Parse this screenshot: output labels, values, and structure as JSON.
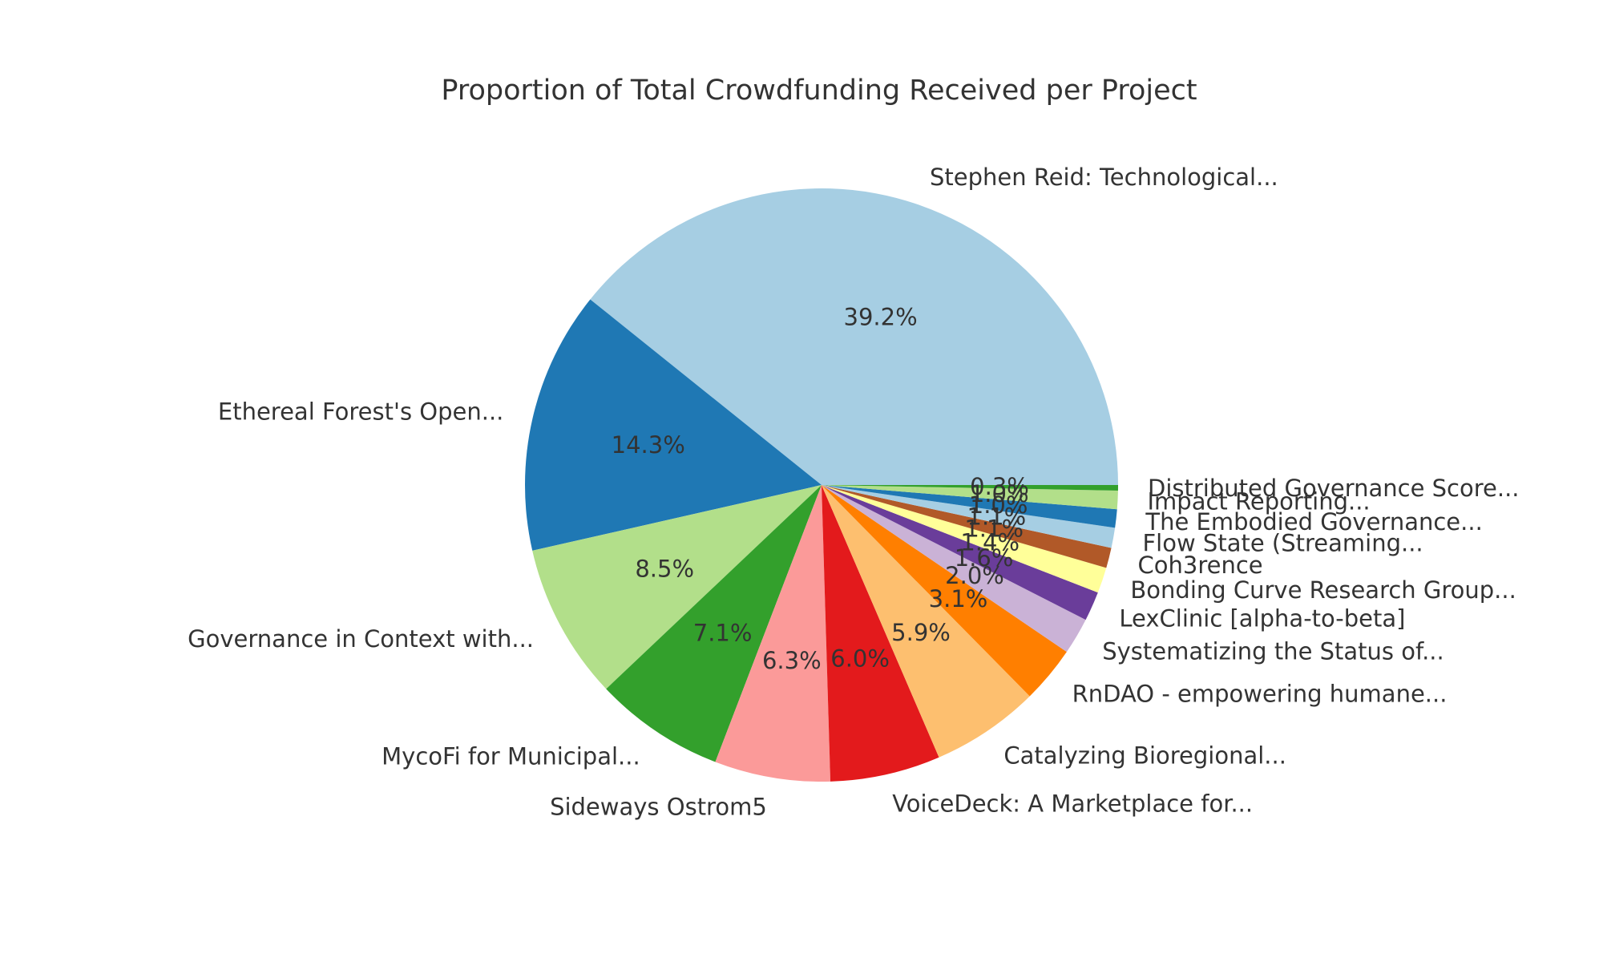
{
  "chart_data": {
    "type": "pie",
    "title": "Proportion of Total Crowdfunding Received per Project",
    "start_angle_deg": 0,
    "direction": "counterclockwise",
    "legend": "none",
    "background_color": "#ffffff",
    "text_color": "#333333",
    "slices": [
      {
        "label": "Stephen Reid: Technological...",
        "pct_label": "39.2%",
        "value_pct": 39.2,
        "color": "#a6cee3"
      },
      {
        "label": "Ethereal Forest's Open...",
        "pct_label": "14.3%",
        "value_pct": 14.3,
        "color": "#1f78b4"
      },
      {
        "label": "Governance in Context with...",
        "pct_label": "8.5%",
        "value_pct": 8.5,
        "color": "#b2df8a"
      },
      {
        "label": "MycoFi for Municipal...",
        "pct_label": "7.1%",
        "value_pct": 7.1,
        "color": "#33a02c"
      },
      {
        "label": "Sideways Ostrom5",
        "pct_label": "6.3%",
        "value_pct": 6.3,
        "color": "#fb9a99"
      },
      {
        "label": "VoiceDeck: A Marketplace for...",
        "pct_label": "6.0%",
        "value_pct": 6.0,
        "color": "#e31a1c"
      },
      {
        "label": "Catalyzing Bioregional...",
        "pct_label": "5.9%",
        "value_pct": 5.9,
        "color": "#fdbf6f"
      },
      {
        "label": "RnDAO - empowering humane...",
        "pct_label": "3.1%",
        "value_pct": 3.1,
        "color": "#ff7f00"
      },
      {
        "label": "Systematizing the Status of...",
        "pct_label": "2.0%",
        "value_pct": 2.0,
        "color": "#cab2d6"
      },
      {
        "label": "LexClinic [alpha-to-beta]",
        "pct_label": "1.6%",
        "value_pct": 1.6,
        "color": "#6a3d9a"
      },
      {
        "label": "Bonding Curve Research Group...",
        "pct_label": "1.4%",
        "value_pct": 1.4,
        "color": "#ffff99"
      },
      {
        "label": "Coh3rence",
        "pct_label": "1.1%",
        "value_pct": 1.1,
        "color": "#b15928"
      },
      {
        "label": "Flow State (Streaming...",
        "pct_label": "1.1%",
        "value_pct": 1.1,
        "color": "#a6cee3"
      },
      {
        "label": "The Embodied Governance...",
        "pct_label": "1.0%",
        "value_pct": 1.0,
        "color": "#1f78b4"
      },
      {
        "label": "Impact Reporting...",
        "pct_label": "1.0%",
        "value_pct": 1.0,
        "color": "#b2df8a"
      },
      {
        "label": "Distributed Governance Score...",
        "pct_label": "0.3%",
        "value_pct": 0.3,
        "color": "#33a02c"
      }
    ]
  }
}
